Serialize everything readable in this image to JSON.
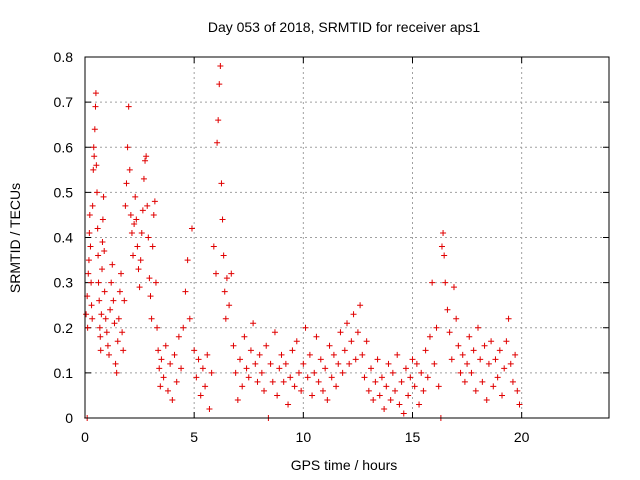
{
  "chart_data": {
    "type": "scatter",
    "title": "Day 053 of 2018, SRMTID for receiver aps1",
    "xlabel": "GPS time / hours",
    "ylabel": "SRMTID / TECUs",
    "xlim": [
      0,
      24
    ],
    "ylim": [
      0,
      0.8
    ],
    "xticks": [
      0,
      5,
      10,
      15,
      20
    ],
    "yticks": [
      0,
      0.1,
      0.2,
      0.3,
      0.4,
      0.5,
      0.6,
      0.7,
      0.8
    ],
    "xtick_labels": [
      "0",
      "5",
      "10",
      "15",
      "20"
    ],
    "ytick_labels": [
      "0",
      "0.1",
      "0.2",
      "0.3",
      "0.4",
      "0.5",
      "0.6",
      "0.7",
      "0.8"
    ],
    "grid": true,
    "marker": "plus",
    "series": [
      {
        "name": "SRMTID",
        "color": "#e00000",
        "points": [
          [
            0.05,
            0.23
          ],
          [
            0.1,
            0.27
          ],
          [
            0.12,
            0.2
          ],
          [
            0.15,
            0.32
          ],
          [
            0.18,
            0.35
          ],
          [
            0.2,
            0.41
          ],
          [
            0.22,
            0.45
          ],
          [
            0.25,
            0.38
          ],
          [
            0.28,
            0.3
          ],
          [
            0.3,
            0.25
          ],
          [
            0.33,
            0.22
          ],
          [
            0.35,
            0.47
          ],
          [
            0.38,
            0.55
          ],
          [
            0.4,
            0.6
          ],
          [
            0.42,
            0.58
          ],
          [
            0.45,
            0.64
          ],
          [
            0.48,
            0.69
          ],
          [
            0.5,
            0.72
          ],
          [
            0.52,
            0.56
          ],
          [
            0.55,
            0.5
          ],
          [
            0.58,
            0.42
          ],
          [
            0.6,
            0.36
          ],
          [
            0.62,
            0.3
          ],
          [
            0.65,
            0.26
          ],
          [
            0.68,
            0.2
          ],
          [
            0.7,
            0.18
          ],
          [
            0.72,
            0.15
          ],
          [
            0.75,
            0.23
          ],
          [
            0.78,
            0.33
          ],
          [
            0.8,
            0.39
          ],
          [
            0.82,
            0.44
          ],
          [
            0.85,
            0.49
          ],
          [
            0.88,
            0.37
          ],
          [
            0.9,
            0.28
          ],
          [
            0.95,
            0.22
          ],
          [
            1.0,
            0.19
          ],
          [
            1.05,
            0.16
          ],
          [
            1.1,
            0.14
          ],
          [
            1.15,
            0.24
          ],
          [
            1.2,
            0.3
          ],
          [
            1.25,
            0.34
          ],
          [
            1.3,
            0.26
          ],
          [
            1.35,
            0.21
          ],
          [
            1.4,
            0.12
          ],
          [
            1.45,
            0.1
          ],
          [
            1.5,
            0.17
          ],
          [
            1.55,
            0.22
          ],
          [
            1.6,
            0.28
          ],
          [
            1.65,
            0.32
          ],
          [
            1.7,
            0.19
          ],
          [
            1.75,
            0.15
          ],
          [
            1.8,
            0.26
          ],
          [
            1.85,
            0.47
          ],
          [
            1.9,
            0.52
          ],
          [
            1.95,
            0.6
          ],
          [
            2.0,
            0.69
          ],
          [
            2.05,
            0.55
          ],
          [
            2.1,
            0.45
          ],
          [
            2.15,
            0.41
          ],
          [
            2.2,
            0.36
          ],
          [
            2.25,
            0.43
          ],
          [
            2.3,
            0.49
          ],
          [
            2.35,
            0.44
          ],
          [
            2.4,
            0.38
          ],
          [
            2.45,
            0.33
          ],
          [
            2.5,
            0.29
          ],
          [
            2.55,
            0.35
          ],
          [
            2.6,
            0.41
          ],
          [
            2.65,
            0.46
          ],
          [
            2.7,
            0.53
          ],
          [
            2.75,
            0.57
          ],
          [
            2.8,
            0.58
          ],
          [
            2.85,
            0.47
          ],
          [
            2.9,
            0.4
          ],
          [
            2.95,
            0.31
          ],
          [
            3.0,
            0.27
          ],
          [
            3.05,
            0.22
          ],
          [
            3.1,
            0.38
          ],
          [
            3.15,
            0.45
          ],
          [
            3.2,
            0.48
          ],
          [
            3.25,
            0.3
          ],
          [
            3.3,
            0.2
          ],
          [
            3.35,
            0.15
          ],
          [
            3.4,
            0.11
          ],
          [
            3.45,
            0.07
          ],
          [
            3.5,
            0.13
          ],
          [
            3.6,
            0.09
          ],
          [
            3.7,
            0.16
          ],
          [
            3.8,
            0.06
          ],
          [
            3.9,
            0.12
          ],
          [
            4.0,
            0.04
          ],
          [
            4.1,
            0.14
          ],
          [
            4.2,
            0.08
          ],
          [
            4.3,
            0.18
          ],
          [
            4.4,
            0.11
          ],
          [
            4.5,
            0.2
          ],
          [
            4.6,
            0.28
          ],
          [
            4.7,
            0.35
          ],
          [
            4.8,
            0.22
          ],
          [
            4.9,
            0.42
          ],
          [
            5.0,
            0.15
          ],
          [
            5.1,
            0.09
          ],
          [
            5.2,
            0.13
          ],
          [
            5.3,
            0.05
          ],
          [
            5.4,
            0.11
          ],
          [
            5.5,
            0.07
          ],
          [
            5.6,
            0.14
          ],
          [
            5.7,
            0.02
          ],
          [
            5.8,
            0.1
          ],
          [
            5.9,
            0.38
          ],
          [
            6.0,
            0.32
          ],
          [
            6.05,
            0.61
          ],
          [
            6.1,
            0.66
          ],
          [
            6.15,
            0.74
          ],
          [
            6.2,
            0.78
          ],
          [
            6.25,
            0.52
          ],
          [
            6.3,
            0.44
          ],
          [
            6.35,
            0.36
          ],
          [
            6.4,
            0.28
          ],
          [
            6.45,
            0.22
          ],
          [
            6.5,
            0.31
          ],
          [
            6.6,
            0.25
          ],
          [
            6.7,
            0.32
          ],
          [
            6.8,
            0.16
          ],
          [
            6.9,
            0.1
          ],
          [
            7.0,
            0.04
          ],
          [
            7.1,
            0.13
          ],
          [
            7.2,
            0.07
          ],
          [
            7.3,
            0.18
          ],
          [
            7.4,
            0.11
          ],
          [
            7.5,
            0.09
          ],
          [
            7.6,
            0.15
          ],
          [
            7.7,
            0.21
          ],
          [
            7.8,
            0.12
          ],
          [
            7.9,
            0.08
          ],
          [
            8.0,
            0.14
          ],
          [
            8.1,
            0.1
          ],
          [
            8.2,
            0.06
          ],
          [
            8.3,
            0.16
          ],
          [
            8.4,
            0.0
          ],
          [
            8.5,
            0.12
          ],
          [
            8.6,
            0.08
          ],
          [
            8.7,
            0.19
          ],
          [
            8.8,
            0.05
          ],
          [
            8.9,
            0.11
          ],
          [
            9.0,
            0.14
          ],
          [
            9.1,
            0.08
          ],
          [
            9.2,
            0.12
          ],
          [
            9.3,
            0.03
          ],
          [
            9.4,
            0.09
          ],
          [
            9.5,
            0.15
          ],
          [
            9.6,
            0.07
          ],
          [
            9.7,
            0.17
          ],
          [
            9.8,
            0.1
          ],
          [
            9.9,
            0.06
          ],
          [
            10.0,
            0.12
          ],
          [
            10.1,
            0.2
          ],
          [
            10.2,
            0.09
          ],
          [
            10.3,
            0.14
          ],
          [
            10.4,
            0.05
          ],
          [
            10.5,
            0.1
          ],
          [
            10.6,
            0.18
          ],
          [
            10.7,
            0.08
          ],
          [
            10.8,
            0.13
          ],
          [
            10.9,
            0.06
          ],
          [
            11.0,
            0.11
          ],
          [
            11.1,
            0.04
          ],
          [
            11.2,
            0.16
          ],
          [
            11.3,
            0.09
          ],
          [
            11.4,
            0.14
          ],
          [
            11.5,
            0.07
          ],
          [
            11.6,
            0.12
          ],
          [
            11.7,
            0.19
          ],
          [
            11.8,
            0.1
          ],
          [
            11.9,
            0.15
          ],
          [
            12.0,
            0.21
          ],
          [
            12.1,
            0.12
          ],
          [
            12.2,
            0.17
          ],
          [
            12.3,
            0.23
          ],
          [
            12.4,
            0.13
          ],
          [
            12.5,
            0.19
          ],
          [
            12.6,
            0.25
          ],
          [
            12.7,
            0.14
          ],
          [
            12.8,
            0.09
          ],
          [
            12.9,
            0.17
          ],
          [
            13.0,
            0.06
          ],
          [
            13.1,
            0.11
          ],
          [
            13.2,
            0.04
          ],
          [
            13.3,
            0.08
          ],
          [
            13.4,
            0.13
          ],
          [
            13.5,
            0.05
          ],
          [
            13.6,
            0.09
          ],
          [
            13.7,
            0.02
          ],
          [
            13.8,
            0.07
          ],
          [
            13.9,
            0.12
          ],
          [
            14.0,
            0.04
          ],
          [
            14.1,
            0.1
          ],
          [
            14.2,
            0.06
          ],
          [
            14.3,
            0.14
          ],
          [
            14.4,
            0.03
          ],
          [
            14.5,
            0.08
          ],
          [
            14.6,
            0.01
          ],
          [
            14.7,
            0.11
          ],
          [
            14.8,
            0.05
          ],
          [
            14.9,
            0.09
          ],
          [
            15.0,
            0.13
          ],
          [
            15.1,
            0.07
          ],
          [
            15.2,
            0.12
          ],
          [
            15.3,
            0.03
          ],
          [
            15.4,
            0.1
          ],
          [
            15.5,
            0.06
          ],
          [
            15.6,
            0.15
          ],
          [
            15.7,
            0.09
          ],
          [
            15.8,
            0.18
          ],
          [
            15.9,
            0.3
          ],
          [
            16.0,
            0.12
          ],
          [
            16.1,
            0.2
          ],
          [
            16.2,
            0.07
          ],
          [
            16.3,
            0.0
          ],
          [
            16.35,
            0.38
          ],
          [
            16.4,
            0.41
          ],
          [
            16.45,
            0.36
          ],
          [
            16.5,
            0.3
          ],
          [
            16.6,
            0.24
          ],
          [
            16.7,
            0.19
          ],
          [
            16.8,
            0.13
          ],
          [
            16.9,
            0.29
          ],
          [
            17.0,
            0.22
          ],
          [
            17.1,
            0.16
          ],
          [
            17.2,
            0.1
          ],
          [
            17.3,
            0.14
          ],
          [
            17.4,
            0.08
          ],
          [
            17.5,
            0.12
          ],
          [
            17.6,
            0.18
          ],
          [
            17.7,
            0.1
          ],
          [
            17.8,
            0.15
          ],
          [
            17.9,
            0.06
          ],
          [
            18.0,
            0.2
          ],
          [
            18.1,
            0.13
          ],
          [
            18.2,
            0.08
          ],
          [
            18.3,
            0.16
          ],
          [
            18.4,
            0.04
          ],
          [
            18.5,
            0.12
          ],
          [
            18.6,
            0.17
          ],
          [
            18.7,
            0.07
          ],
          [
            18.8,
            0.13
          ],
          [
            18.9,
            0.09
          ],
          [
            19.0,
            0.15
          ],
          [
            19.1,
            0.05
          ],
          [
            19.2,
            0.11
          ],
          [
            19.3,
            0.17
          ],
          [
            19.4,
            0.22
          ],
          [
            19.5,
            0.12
          ],
          [
            19.6,
            0.08
          ],
          [
            19.7,
            0.14
          ],
          [
            19.8,
            0.06
          ],
          [
            19.9,
            0.03
          ],
          [
            0.1,
            0.0
          ]
        ]
      }
    ]
  }
}
